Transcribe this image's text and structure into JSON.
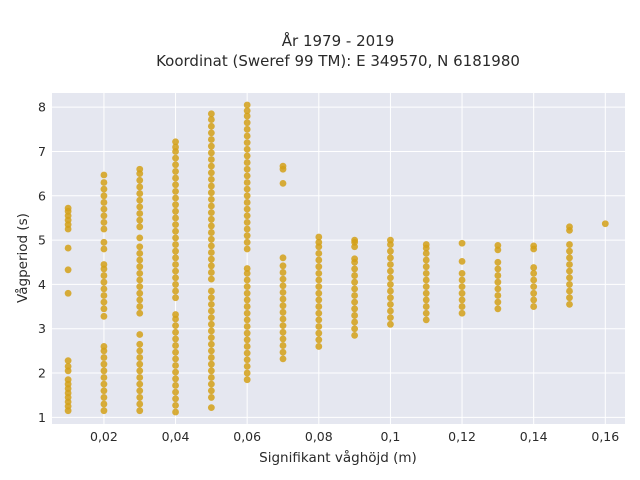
{
  "chart_data": {
    "type": "scatter",
    "title_line1": "År 1979 - 2019",
    "title_line2": "Koordinat (Sweref 99 TM): E 349570, N 6181980",
    "xlabel": "Signifikant våghöjd (m)",
    "ylabel": "Vågperiod (s)",
    "xlim": [
      0.0055,
      0.1655
    ],
    "ylim": [
      0.85,
      8.32
    ],
    "grid": true,
    "point_color": "#d4a017",
    "plot_background": "#e5e7f0",
    "x_ticks": [
      {
        "value": 0.02,
        "label": "0,02"
      },
      {
        "value": 0.04,
        "label": "0,04"
      },
      {
        "value": 0.06,
        "label": "0,06"
      },
      {
        "value": 0.08,
        "label": "0,08"
      },
      {
        "value": 0.1,
        "label": "0,1"
      },
      {
        "value": 0.12,
        "label": "0,12"
      },
      {
        "value": 0.14,
        "label": "0,14"
      },
      {
        "value": 0.16,
        "label": "0,16"
      }
    ],
    "y_ticks": [
      {
        "value": 1,
        "label": "1"
      },
      {
        "value": 2,
        "label": "2"
      },
      {
        "value": 3,
        "label": "3"
      },
      {
        "value": 4,
        "label": "4"
      },
      {
        "value": 5,
        "label": "5"
      },
      {
        "value": 6,
        "label": "6"
      },
      {
        "value": 7,
        "label": "7"
      },
      {
        "value": 8,
        "label": "8"
      }
    ],
    "points": [
      [
        0.01,
        1.15
      ],
      [
        0.01,
        1.25
      ],
      [
        0.01,
        1.35
      ],
      [
        0.01,
        1.45
      ],
      [
        0.01,
        1.55
      ],
      [
        0.01,
        1.65
      ],
      [
        0.01,
        1.75
      ],
      [
        0.01,
        1.85
      ],
      [
        0.01,
        2.05
      ],
      [
        0.01,
        2.15
      ],
      [
        0.01,
        2.28
      ],
      [
        0.01,
        3.8
      ],
      [
        0.01,
        4.33
      ],
      [
        0.01,
        4.82
      ],
      [
        0.01,
        5.25
      ],
      [
        0.01,
        5.35
      ],
      [
        0.01,
        5.45
      ],
      [
        0.01,
        5.55
      ],
      [
        0.01,
        5.65
      ],
      [
        0.01,
        5.72
      ],
      [
        0.02,
        1.15
      ],
      [
        0.02,
        1.3
      ],
      [
        0.02,
        1.45
      ],
      [
        0.02,
        1.6
      ],
      [
        0.02,
        1.75
      ],
      [
        0.02,
        1.9
      ],
      [
        0.02,
        2.05
      ],
      [
        0.02,
        2.2
      ],
      [
        0.02,
        2.35
      ],
      [
        0.02,
        2.5
      ],
      [
        0.02,
        2.6
      ],
      [
        0.02,
        3.28
      ],
      [
        0.02,
        3.45
      ],
      [
        0.02,
        3.6
      ],
      [
        0.02,
        3.75
      ],
      [
        0.02,
        3.9
      ],
      [
        0.02,
        4.05
      ],
      [
        0.02,
        4.2
      ],
      [
        0.02,
        4.35
      ],
      [
        0.02,
        4.45
      ],
      [
        0.02,
        4.8
      ],
      [
        0.02,
        4.95
      ],
      [
        0.02,
        5.25
      ],
      [
        0.02,
        5.4
      ],
      [
        0.02,
        5.55
      ],
      [
        0.02,
        5.7
      ],
      [
        0.02,
        5.85
      ],
      [
        0.02,
        6.0
      ],
      [
        0.02,
        6.15
      ],
      [
        0.02,
        6.3
      ],
      [
        0.02,
        6.47
      ],
      [
        0.03,
        1.15
      ],
      [
        0.03,
        1.3
      ],
      [
        0.03,
        1.45
      ],
      [
        0.03,
        1.6
      ],
      [
        0.03,
        1.75
      ],
      [
        0.03,
        1.9
      ],
      [
        0.03,
        2.05
      ],
      [
        0.03,
        2.2
      ],
      [
        0.03,
        2.35
      ],
      [
        0.03,
        2.5
      ],
      [
        0.03,
        2.65
      ],
      [
        0.03,
        2.87
      ],
      [
        0.03,
        3.35
      ],
      [
        0.03,
        3.5
      ],
      [
        0.03,
        3.65
      ],
      [
        0.03,
        3.8
      ],
      [
        0.03,
        3.95
      ],
      [
        0.03,
        4.1
      ],
      [
        0.03,
        4.25
      ],
      [
        0.03,
        4.4
      ],
      [
        0.03,
        4.55
      ],
      [
        0.03,
        4.7
      ],
      [
        0.03,
        4.85
      ],
      [
        0.03,
        5.05
      ],
      [
        0.03,
        5.3
      ],
      [
        0.03,
        5.45
      ],
      [
        0.03,
        5.6
      ],
      [
        0.03,
        5.75
      ],
      [
        0.03,
        5.9
      ],
      [
        0.03,
        6.05
      ],
      [
        0.03,
        6.2
      ],
      [
        0.03,
        6.35
      ],
      [
        0.03,
        6.5
      ],
      [
        0.03,
        6.6
      ],
      [
        0.04,
        1.12
      ],
      [
        0.04,
        1.27
      ],
      [
        0.04,
        1.42
      ],
      [
        0.04,
        1.57
      ],
      [
        0.04,
        1.72
      ],
      [
        0.04,
        1.87
      ],
      [
        0.04,
        2.02
      ],
      [
        0.04,
        2.17
      ],
      [
        0.04,
        2.32
      ],
      [
        0.04,
        2.47
      ],
      [
        0.04,
        2.62
      ],
      [
        0.04,
        2.77
      ],
      [
        0.04,
        2.92
      ],
      [
        0.04,
        3.07
      ],
      [
        0.04,
        3.22
      ],
      [
        0.04,
        3.32
      ],
      [
        0.04,
        3.7
      ],
      [
        0.04,
        3.85
      ],
      [
        0.04,
        4.0
      ],
      [
        0.04,
        4.15
      ],
      [
        0.04,
        4.3
      ],
      [
        0.04,
        4.45
      ],
      [
        0.04,
        4.6
      ],
      [
        0.04,
        4.75
      ],
      [
        0.04,
        4.9
      ],
      [
        0.04,
        5.05
      ],
      [
        0.04,
        5.2
      ],
      [
        0.04,
        5.35
      ],
      [
        0.04,
        5.5
      ],
      [
        0.04,
        5.65
      ],
      [
        0.04,
        5.8
      ],
      [
        0.04,
        5.95
      ],
      [
        0.04,
        6.1
      ],
      [
        0.04,
        6.25
      ],
      [
        0.04,
        6.4
      ],
      [
        0.04,
        6.55
      ],
      [
        0.04,
        6.7
      ],
      [
        0.04,
        6.85
      ],
      [
        0.04,
        7.0
      ],
      [
        0.04,
        7.1
      ],
      [
        0.04,
        7.22
      ],
      [
        0.05,
        1.22
      ],
      [
        0.05,
        1.45
      ],
      [
        0.05,
        1.6
      ],
      [
        0.05,
        1.75
      ],
      [
        0.05,
        1.9
      ],
      [
        0.05,
        2.05
      ],
      [
        0.05,
        2.2
      ],
      [
        0.05,
        2.35
      ],
      [
        0.05,
        2.5
      ],
      [
        0.05,
        2.65
      ],
      [
        0.05,
        2.8
      ],
      [
        0.05,
        2.95
      ],
      [
        0.05,
        3.1
      ],
      [
        0.05,
        3.25
      ],
      [
        0.05,
        3.4
      ],
      [
        0.05,
        3.55
      ],
      [
        0.05,
        3.7
      ],
      [
        0.05,
        3.85
      ],
      [
        0.05,
        4.12
      ],
      [
        0.05,
        4.27
      ],
      [
        0.05,
        4.42
      ],
      [
        0.05,
        4.57
      ],
      [
        0.05,
        4.72
      ],
      [
        0.05,
        4.87
      ],
      [
        0.05,
        5.02
      ],
      [
        0.05,
        5.17
      ],
      [
        0.05,
        5.32
      ],
      [
        0.05,
        5.47
      ],
      [
        0.05,
        5.62
      ],
      [
        0.05,
        5.77
      ],
      [
        0.05,
        5.92
      ],
      [
        0.05,
        6.07
      ],
      [
        0.05,
        6.22
      ],
      [
        0.05,
        6.37
      ],
      [
        0.05,
        6.52
      ],
      [
        0.05,
        6.67
      ],
      [
        0.05,
        6.82
      ],
      [
        0.05,
        6.97
      ],
      [
        0.05,
        7.12
      ],
      [
        0.05,
        7.27
      ],
      [
        0.05,
        7.42
      ],
      [
        0.05,
        7.57
      ],
      [
        0.05,
        7.72
      ],
      [
        0.05,
        7.85
      ],
      [
        0.06,
        1.85
      ],
      [
        0.06,
        2.0
      ],
      [
        0.06,
        2.15
      ],
      [
        0.06,
        2.3
      ],
      [
        0.06,
        2.45
      ],
      [
        0.06,
        2.6
      ],
      [
        0.06,
        2.75
      ],
      [
        0.06,
        2.9
      ],
      [
        0.06,
        3.05
      ],
      [
        0.06,
        3.2
      ],
      [
        0.06,
        3.35
      ],
      [
        0.06,
        3.5
      ],
      [
        0.06,
        3.65
      ],
      [
        0.06,
        3.8
      ],
      [
        0.06,
        3.95
      ],
      [
        0.06,
        4.1
      ],
      [
        0.06,
        4.25
      ],
      [
        0.06,
        4.36
      ],
      [
        0.06,
        4.8
      ],
      [
        0.06,
        4.95
      ],
      [
        0.06,
        5.1
      ],
      [
        0.06,
        5.25
      ],
      [
        0.06,
        5.4
      ],
      [
        0.06,
        5.55
      ],
      [
        0.06,
        5.7
      ],
      [
        0.06,
        5.85
      ],
      [
        0.06,
        6.0
      ],
      [
        0.06,
        6.15
      ],
      [
        0.06,
        6.3
      ],
      [
        0.06,
        6.45
      ],
      [
        0.06,
        6.6
      ],
      [
        0.06,
        6.75
      ],
      [
        0.06,
        6.9
      ],
      [
        0.06,
        7.05
      ],
      [
        0.06,
        7.2
      ],
      [
        0.06,
        7.35
      ],
      [
        0.06,
        7.5
      ],
      [
        0.06,
        7.65
      ],
      [
        0.06,
        7.8
      ],
      [
        0.06,
        7.92
      ],
      [
        0.06,
        8.05
      ],
      [
        0.07,
        2.32
      ],
      [
        0.07,
        2.47
      ],
      [
        0.07,
        2.62
      ],
      [
        0.07,
        2.77
      ],
      [
        0.07,
        2.92
      ],
      [
        0.07,
        3.07
      ],
      [
        0.07,
        3.22
      ],
      [
        0.07,
        3.37
      ],
      [
        0.07,
        3.52
      ],
      [
        0.07,
        3.67
      ],
      [
        0.07,
        3.82
      ],
      [
        0.07,
        3.97
      ],
      [
        0.07,
        4.12
      ],
      [
        0.07,
        4.27
      ],
      [
        0.07,
        4.42
      ],
      [
        0.07,
        4.6
      ],
      [
        0.07,
        6.28
      ],
      [
        0.07,
        6.6
      ],
      [
        0.07,
        6.67
      ],
      [
        0.08,
        2.6
      ],
      [
        0.08,
        2.75
      ],
      [
        0.08,
        2.9
      ],
      [
        0.08,
        3.05
      ],
      [
        0.08,
        3.2
      ],
      [
        0.08,
        3.35
      ],
      [
        0.08,
        3.5
      ],
      [
        0.08,
        3.65
      ],
      [
        0.08,
        3.8
      ],
      [
        0.08,
        3.95
      ],
      [
        0.08,
        4.1
      ],
      [
        0.08,
        4.25
      ],
      [
        0.08,
        4.4
      ],
      [
        0.08,
        4.55
      ],
      [
        0.08,
        4.7
      ],
      [
        0.08,
        4.85
      ],
      [
        0.08,
        4.95
      ],
      [
        0.08,
        5.07
      ],
      [
        0.09,
        2.85
      ],
      [
        0.09,
        3.0
      ],
      [
        0.09,
        3.15
      ],
      [
        0.09,
        3.3
      ],
      [
        0.09,
        3.45
      ],
      [
        0.09,
        3.6
      ],
      [
        0.09,
        3.75
      ],
      [
        0.09,
        3.9
      ],
      [
        0.09,
        4.05
      ],
      [
        0.09,
        4.2
      ],
      [
        0.09,
        4.35
      ],
      [
        0.09,
        4.5
      ],
      [
        0.09,
        4.58
      ],
      [
        0.09,
        4.85
      ],
      [
        0.09,
        4.95
      ],
      [
        0.09,
        5.0
      ],
      [
        0.1,
        3.1
      ],
      [
        0.1,
        3.25
      ],
      [
        0.1,
        3.4
      ],
      [
        0.1,
        3.55
      ],
      [
        0.1,
        3.7
      ],
      [
        0.1,
        3.85
      ],
      [
        0.1,
        4.0
      ],
      [
        0.1,
        4.15
      ],
      [
        0.1,
        4.3
      ],
      [
        0.1,
        4.45
      ],
      [
        0.1,
        4.6
      ],
      [
        0.1,
        4.75
      ],
      [
        0.1,
        4.9
      ],
      [
        0.1,
        5.0
      ],
      [
        0.11,
        3.2
      ],
      [
        0.11,
        3.35
      ],
      [
        0.11,
        3.5
      ],
      [
        0.11,
        3.65
      ],
      [
        0.11,
        3.8
      ],
      [
        0.11,
        3.95
      ],
      [
        0.11,
        4.1
      ],
      [
        0.11,
        4.25
      ],
      [
        0.11,
        4.4
      ],
      [
        0.11,
        4.55
      ],
      [
        0.11,
        4.7
      ],
      [
        0.11,
        4.82
      ],
      [
        0.11,
        4.9
      ],
      [
        0.12,
        3.35
      ],
      [
        0.12,
        3.5
      ],
      [
        0.12,
        3.65
      ],
      [
        0.12,
        3.8
      ],
      [
        0.12,
        3.95
      ],
      [
        0.12,
        4.1
      ],
      [
        0.12,
        4.25
      ],
      [
        0.12,
        4.52
      ],
      [
        0.12,
        4.93
      ],
      [
        0.13,
        3.45
      ],
      [
        0.13,
        3.6
      ],
      [
        0.13,
        3.75
      ],
      [
        0.13,
        3.9
      ],
      [
        0.13,
        4.05
      ],
      [
        0.13,
        4.2
      ],
      [
        0.13,
        4.35
      ],
      [
        0.13,
        4.5
      ],
      [
        0.13,
        4.78
      ],
      [
        0.13,
        4.88
      ],
      [
        0.14,
        3.5
      ],
      [
        0.14,
        3.65
      ],
      [
        0.14,
        3.8
      ],
      [
        0.14,
        3.95
      ],
      [
        0.14,
        4.1
      ],
      [
        0.14,
        4.25
      ],
      [
        0.14,
        4.38
      ],
      [
        0.14,
        4.8
      ],
      [
        0.14,
        4.87
      ],
      [
        0.15,
        3.55
      ],
      [
        0.15,
        3.7
      ],
      [
        0.15,
        3.85
      ],
      [
        0.15,
        4.0
      ],
      [
        0.15,
        4.15
      ],
      [
        0.15,
        4.3
      ],
      [
        0.15,
        4.45
      ],
      [
        0.15,
        4.6
      ],
      [
        0.15,
        4.75
      ],
      [
        0.15,
        4.9
      ],
      [
        0.15,
        5.22
      ],
      [
        0.15,
        5.3
      ],
      [
        0.16,
        5.37
      ]
    ]
  }
}
